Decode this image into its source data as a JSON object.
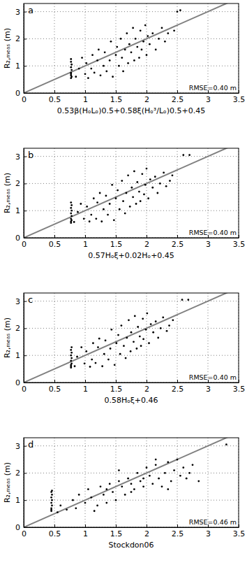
{
  "chart_data": [
    {
      "type": "scatter",
      "panel_label": "a",
      "annotation": "RMSE=0.40 m",
      "x_label": "0.53β(HₒLₒ)0.5+0.58ξ(Hₒ³/Lₒ)0.5+0.45",
      "y_label": "R₂,ₘₑₐₛ (m)",
      "xlim": [
        0,
        3.5
      ],
      "ylim": [
        0,
        3.3
      ],
      "xticks": [
        0,
        0.5,
        1,
        1.5,
        2,
        2.5,
        3,
        3.5
      ],
      "yticks": [
        0,
        1,
        2,
        3
      ],
      "grid": true,
      "color": "#000000",
      "x": [
        0.77,
        0.77,
        0.77,
        0.78,
        0.77,
        0.78,
        0.77,
        0.77,
        0.78,
        0.77,
        0.85,
        0.9,
        0.95,
        1.0,
        1.02,
        1.05,
        1.1,
        1.12,
        1.15,
        1.2,
        1.22,
        1.25,
        1.3,
        1.32,
        1.35,
        1.4,
        1.42,
        1.45,
        1.5,
        1.52,
        1.55,
        1.58,
        1.6,
        1.62,
        1.65,
        1.68,
        1.7,
        1.72,
        1.75,
        1.78,
        1.8,
        1.82,
        1.85,
        1.88,
        1.9,
        1.92,
        1.95,
        1.98,
        2.0,
        2.02,
        2.05,
        2.1,
        2.15,
        2.2,
        2.25,
        2.3,
        2.35,
        2.45,
        2.5,
        2.55
      ],
      "values": [
        0.55,
        0.65,
        0.75,
        0.85,
        0.95,
        1.05,
        1.15,
        1.25,
        0.6,
        0.7,
        0.6,
        0.9,
        1.3,
        0.7,
        1.1,
        0.55,
        0.9,
        1.4,
        0.75,
        1.2,
        1.6,
        0.65,
        1.0,
        1.5,
        0.8,
        1.2,
        1.9,
        0.6,
        1.4,
        1.7,
        1.0,
        2.0,
        1.3,
        0.8,
        1.6,
        2.2,
        1.1,
        1.8,
        1.5,
        2.4,
        1.2,
        2.0,
        1.7,
        1.3,
        2.3,
        1.6,
        1.9,
        2.5,
        1.4,
        2.1,
        1.8,
        2.2,
        1.6,
        2.0,
        2.4,
        1.9,
        2.2,
        2.3,
        3.0,
        3.05
      ],
      "reference_line": {
        "x": [
          0,
          3.5
        ],
        "values": [
          0,
          3.5
        ],
        "color": "#808080"
      }
    },
    {
      "type": "scatter",
      "panel_label": "b",
      "annotation": "RMSE=0.40 m",
      "x_label": "0.57Hₒξ+0.02Hₒ+0.45",
      "y_label": "R₂,ₘₑₐₛ (m)",
      "xlim": [
        0,
        3.5
      ],
      "ylim": [
        0,
        3.3
      ],
      "xticks": [
        0,
        0.5,
        1,
        1.5,
        2,
        2.5,
        3,
        3.5
      ],
      "yticks": [
        0,
        1,
        2,
        3
      ],
      "grid": true,
      "color": "#000000",
      "x": [
        0.77,
        0.77,
        0.78,
        0.77,
        0.78,
        0.77,
        0.78,
        0.77,
        0.77,
        0.78,
        0.82,
        0.88,
        0.93,
        0.98,
        1.03,
        1.07,
        1.1,
        1.14,
        1.18,
        1.2,
        1.24,
        1.27,
        1.3,
        1.34,
        1.37,
        1.4,
        1.44,
        1.47,
        1.5,
        1.53,
        1.56,
        1.6,
        1.62,
        1.65,
        1.67,
        1.7,
        1.73,
        1.76,
        1.78,
        1.8,
        1.83,
        1.85,
        1.88,
        1.9,
        1.93,
        1.96,
        1.98,
        2.0,
        2.03,
        2.06,
        2.1,
        2.14,
        2.18,
        2.22,
        2.28,
        2.32,
        2.38,
        2.42,
        2.6,
        2.7
      ],
      "values": [
        0.55,
        0.7,
        0.8,
        0.9,
        1.0,
        1.1,
        1.2,
        1.3,
        0.6,
        0.65,
        0.58,
        0.95,
        1.25,
        0.7,
        1.15,
        0.6,
        0.85,
        1.45,
        0.7,
        1.3,
        1.65,
        0.6,
        1.05,
        1.55,
        0.85,
        1.25,
        1.95,
        0.65,
        1.45,
        1.75,
        1.05,
        2.1,
        1.35,
        0.9,
        1.65,
        2.3,
        1.15,
        1.85,
        1.5,
        2.45,
        1.25,
        2.05,
        1.7,
        1.35,
        2.35,
        1.6,
        1.95,
        2.55,
        1.45,
        2.15,
        1.85,
        2.25,
        1.65,
        2.0,
        2.4,
        1.9,
        2.1,
        2.3,
        3.05,
        3.05
      ],
      "reference_line": {
        "x": [
          0,
          3.5
        ],
        "values": [
          0,
          3.5
        ],
        "color": "#808080"
      }
    },
    {
      "type": "scatter",
      "panel_label": "c",
      "annotation": "RMSE=0.40 m",
      "x_label": "0.58Hₒξ+0.46",
      "y_label": "R₂,ₘₑₐₛ (m)",
      "xlim": [
        0,
        3.5
      ],
      "ylim": [
        0,
        3.3
      ],
      "xticks": [
        0,
        0.5,
        1,
        1.5,
        2,
        2.5,
        3,
        3.5
      ],
      "yticks": [
        0,
        1,
        2,
        3
      ],
      "grid": true,
      "color": "#000000",
      "x": [
        0.77,
        0.78,
        0.77,
        0.78,
        0.77,
        0.78,
        0.77,
        0.78,
        0.77,
        0.77,
        0.83,
        0.87,
        0.94,
        0.99,
        1.02,
        1.08,
        1.11,
        1.13,
        1.17,
        1.21,
        1.23,
        1.28,
        1.31,
        1.33,
        1.38,
        1.41,
        1.43,
        1.48,
        1.51,
        1.54,
        1.57,
        1.59,
        1.63,
        1.66,
        1.68,
        1.71,
        1.74,
        1.75,
        1.79,
        1.81,
        1.84,
        1.86,
        1.89,
        1.91,
        1.94,
        1.95,
        1.99,
        2.01,
        2.04,
        2.07,
        2.11,
        2.15,
        2.19,
        2.23,
        2.27,
        2.33,
        2.37,
        2.43,
        2.58,
        2.68
      ],
      "values": [
        0.55,
        0.7,
        0.8,
        0.9,
        1.0,
        1.1,
        1.2,
        1.3,
        0.6,
        0.65,
        0.6,
        0.95,
        1.3,
        0.7,
        1.15,
        0.58,
        0.85,
        1.45,
        0.72,
        1.3,
        1.62,
        0.6,
        1.05,
        1.55,
        0.85,
        1.25,
        1.95,
        0.65,
        1.45,
        1.75,
        1.05,
        2.1,
        1.35,
        0.9,
        1.65,
        2.3,
        1.15,
        1.85,
        1.5,
        2.45,
        1.25,
        2.05,
        1.7,
        1.35,
        2.35,
        1.6,
        1.95,
        2.55,
        1.45,
        2.15,
        1.85,
        2.25,
        1.65,
        2.0,
        2.4,
        1.9,
        2.1,
        2.3,
        3.05,
        3.05
      ],
      "reference_line": {
        "x": [
          0,
          3.5
        ],
        "values": [
          0,
          3.5
        ],
        "color": "#808080"
      }
    },
    {
      "type": "scatter",
      "panel_label": "d",
      "annotation": "RMSE=0.46 m",
      "x_label": "Stockdon06",
      "y_label": "R₂,ₘₑₐₛ (m)",
      "xlim": [
        0,
        3.5
      ],
      "ylim": [
        0,
        3.3
      ],
      "xticks": [
        0,
        0.5,
        1,
        1.5,
        2,
        2.5,
        3,
        3.5
      ],
      "yticks": [
        0,
        1,
        2,
        3
      ],
      "grid": true,
      "color": "#000000",
      "x": [
        0.45,
        0.45,
        0.46,
        0.45,
        0.46,
        0.45,
        0.46,
        0.45,
        0.45,
        0.46,
        0.55,
        0.6,
        0.7,
        0.8,
        0.85,
        0.9,
        1.0,
        1.05,
        1.1,
        1.2,
        1.25,
        1.3,
        1.35,
        1.4,
        1.45,
        1.5,
        1.55,
        1.6,
        1.65,
        1.7,
        1.75,
        1.8,
        1.85,
        1.9,
        1.95,
        2.0,
        2.05,
        2.1,
        2.15,
        2.2,
        2.25,
        2.3,
        2.35,
        2.4,
        2.45,
        2.5,
        2.55,
        2.6,
        2.65,
        2.7,
        1.15,
        1.35,
        1.55,
        1.75,
        1.95,
        2.15,
        2.35,
        2.75,
        2.85,
        3.3
      ],
      "values": [
        0.6,
        0.7,
        0.8,
        0.9,
        1.0,
        1.1,
        1.2,
        1.3,
        0.65,
        1.35,
        0.55,
        0.8,
        0.65,
        1.0,
        0.7,
        1.2,
        0.9,
        1.4,
        1.1,
        0.8,
        1.5,
        1.2,
        0.9,
        1.6,
        1.3,
        1.0,
        1.7,
        1.5,
        1.2,
        1.8,
        1.6,
        1.4,
        2.0,
        1.7,
        1.5,
        2.2,
        1.9,
        1.6,
        2.3,
        1.8,
        1.5,
        2.0,
        2.4,
        1.7,
        2.1,
        2.5,
        1.9,
        2.2,
        1.8,
        2.0,
        0.6,
        1.4,
        2.1,
        1.3,
        1.8,
        2.5,
        1.4,
        2.3,
        1.7,
        3.05
      ],
      "reference_line": {
        "x": [
          0,
          3.5
        ],
        "values": [
          0,
          3.5
        ],
        "color": "#808080"
      }
    }
  ]
}
